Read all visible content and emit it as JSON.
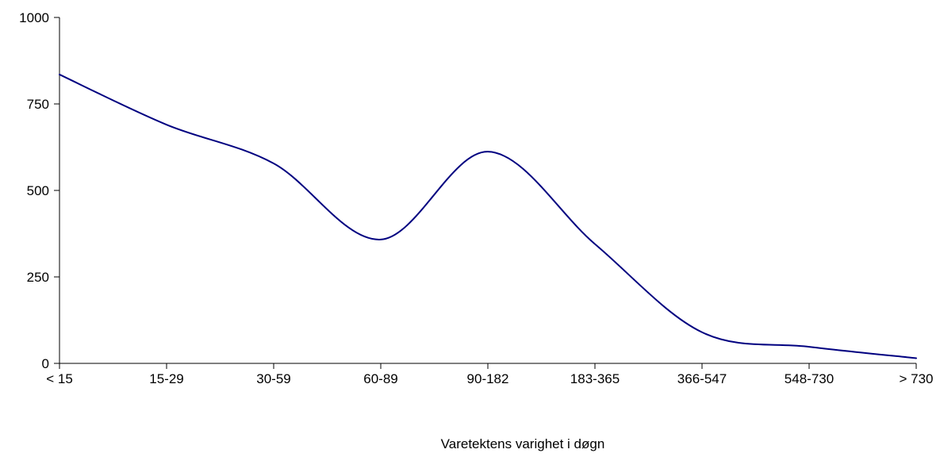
{
  "chart_data": {
    "type": "line",
    "title": "",
    "xlabel": "Varetektens varighet i døgn",
    "ylabel": "",
    "categories": [
      "< 15",
      "15-29",
      "30-59",
      "60-89",
      "90-182",
      "183-365",
      "366-547",
      "548-730",
      "> 730"
    ],
    "series": [
      {
        "values": [
          835,
          690,
          578,
          358,
          612,
          345,
          90,
          48,
          15
        ]
      }
    ],
    "ylim": [
      0,
      1000
    ],
    "yticks": [
      0,
      250,
      500,
      750,
      1000
    ],
    "grid": false,
    "smooth": true,
    "colors": {
      "line": "#000080",
      "axis": "#000000"
    }
  }
}
